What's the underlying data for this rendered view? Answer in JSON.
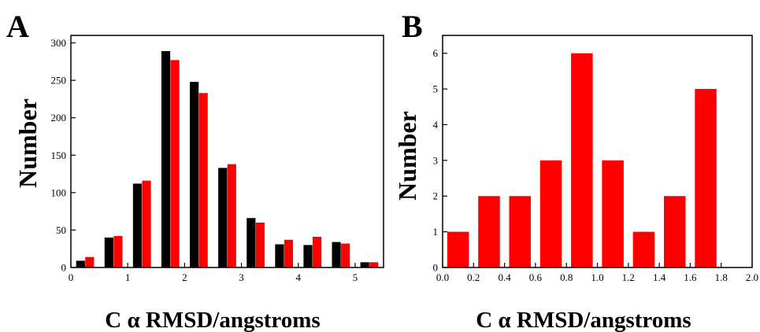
{
  "chart_data": [
    {
      "panel": "A",
      "type": "bar",
      "xlabel": "C α RMSD/angstroms",
      "ylabel": "Number",
      "xlim": [
        0,
        5.5
      ],
      "ylim": [
        0,
        310
      ],
      "xticks": [
        "0",
        "1",
        "2",
        "3",
        "4",
        "5"
      ],
      "yticks": [
        "0",
        "50",
        "100",
        "150",
        "200",
        "250",
        "300"
      ],
      "x": [
        0.25,
        0.75,
        1.25,
        1.75,
        2.25,
        2.75,
        3.25,
        3.75,
        4.25,
        4.75,
        5.25
      ],
      "series": [
        {
          "values": [
            9,
            40,
            112,
            289,
            248,
            133,
            66,
            31,
            30,
            34,
            7
          ],
          "color": "#000000"
        },
        {
          "values": [
            14,
            42,
            116,
            277,
            233,
            138,
            60,
            37,
            41,
            32,
            7
          ],
          "color": "#ff0000"
        }
      ]
    },
    {
      "panel": "B",
      "type": "bar",
      "xlabel": "C α RMSD/angstroms",
      "ylabel": "Number",
      "xlim": [
        0,
        2.0
      ],
      "ylim": [
        0,
        6.5
      ],
      "xticks": [
        "0.0",
        "0.2",
        "0.4",
        "0.6",
        "0.8",
        "1.0",
        "1.2",
        "1.4",
        "1.6",
        "1.8",
        "2.0"
      ],
      "yticks": [
        "0",
        "1",
        "2",
        "3",
        "4",
        "5",
        "6"
      ],
      "x": [
        0.1,
        0.3,
        0.5,
        0.7,
        0.9,
        1.1,
        1.3,
        1.5,
        1.7
      ],
      "series": [
        {
          "values": [
            1,
            2,
            2,
            3,
            6,
            3,
            1,
            2,
            5
          ],
          "color": "#ff0000"
        }
      ]
    }
  ]
}
